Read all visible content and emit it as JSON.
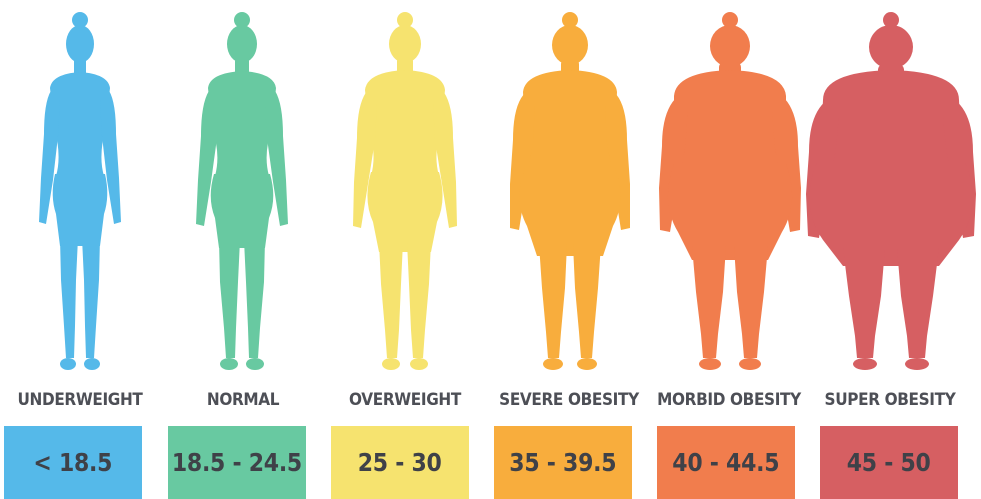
{
  "categories": [
    {
      "label": "UNDERWEIGHT",
      "range": "< 18.5",
      "color": "#55b9e9"
    },
    {
      "label": "NORMAL",
      "range": "18.5 - 24.5",
      "color": "#68c9a1"
    },
    {
      "label": "OVERWEIGHT",
      "range": "25 - 30",
      "color": "#f6e36f"
    },
    {
      "label": "SEVERE OBESITY",
      "range": "35 - 39.5",
      "color": "#f8ad3d"
    },
    {
      "label": "MORBID OBESITY",
      "range": "40 - 44.5",
      "color": "#f17d4d"
    },
    {
      "label": "SUPER OBESITY",
      "range": "45 - 50",
      "color": "#d65f62"
    }
  ]
}
